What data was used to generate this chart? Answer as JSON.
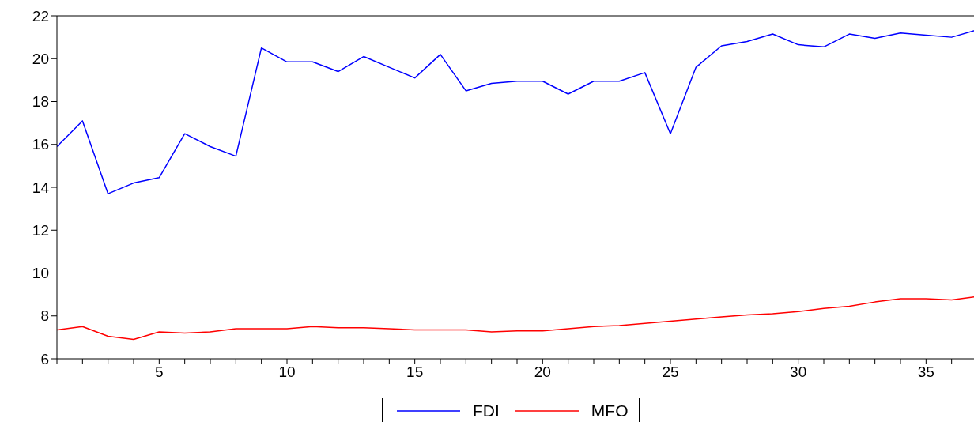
{
  "chart_data": {
    "type": "line",
    "x": [
      1,
      2,
      3,
      4,
      5,
      6,
      7,
      8,
      9,
      10,
      11,
      12,
      13,
      14,
      15,
      16,
      17,
      18,
      19,
      20,
      21,
      22,
      23,
      24,
      25,
      26,
      27,
      28,
      29,
      30,
      31,
      32,
      33,
      34,
      35,
      36,
      37
    ],
    "series": [
      {
        "name": "FDI",
        "color": "#0000ff",
        "values": [
          15.9,
          17.1,
          13.7,
          14.2,
          14.45,
          16.5,
          15.9,
          15.45,
          20.5,
          19.85,
          19.85,
          19.4,
          20.1,
          19.6,
          19.1,
          20.2,
          18.5,
          18.85,
          18.95,
          18.95,
          18.35,
          18.95,
          18.95,
          19.35,
          16.5,
          19.6,
          20.6,
          20.8,
          21.15,
          20.65,
          20.55,
          21.15,
          20.95,
          21.2,
          21.1,
          21.0,
          21.35
        ]
      },
      {
        "name": "MFO",
        "color": "#ff0000",
        "values": [
          7.35,
          7.5,
          7.05,
          6.9,
          7.25,
          7.2,
          7.25,
          7.4,
          7.4,
          7.4,
          7.5,
          7.45,
          7.45,
          7.4,
          7.35,
          7.35,
          7.35,
          7.25,
          7.3,
          7.3,
          7.4,
          7.5,
          7.55,
          7.65,
          7.75,
          7.85,
          7.95,
          8.05,
          8.1,
          8.2,
          8.35,
          8.45,
          8.65,
          8.8,
          8.8,
          8.75,
          8.9
        ]
      }
    ],
    "xlim": [
      1,
      37
    ],
    "xticks": [
      {
        "value": 1,
        "label": null
      },
      {
        "value": 2,
        "label": null
      },
      {
        "value": 3,
        "label": null
      },
      {
        "value": 4,
        "label": null
      },
      5,
      {
        "value": 6,
        "label": null
      },
      {
        "value": 7,
        "label": null
      },
      {
        "value": 8,
        "label": null
      },
      {
        "value": 9,
        "label": null
      },
      10,
      {
        "value": 11,
        "label": null
      },
      {
        "value": 12,
        "label": null
      },
      {
        "value": 13,
        "label": null
      },
      {
        "value": 14,
        "label": null
      },
      15,
      {
        "value": 16,
        "label": null
      },
      {
        "value": 17,
        "label": null
      },
      {
        "value": 18,
        "label": null
      },
      {
        "value": 19,
        "label": null
      },
      20,
      {
        "value": 21,
        "label": null
      },
      {
        "value": 22,
        "label": null
      },
      {
        "value": 23,
        "label": null
      },
      {
        "value": 24,
        "label": null
      },
      25,
      {
        "value": 26,
        "label": null
      },
      {
        "value": 27,
        "label": null
      },
      {
        "value": 28,
        "label": null
      },
      {
        "value": 29,
        "label": null
      },
      30,
      {
        "value": 31,
        "label": null
      },
      {
        "value": 32,
        "label": null
      },
      {
        "value": 33,
        "label": null
      },
      {
        "value": 34,
        "label": null
      },
      35,
      {
        "value": 36,
        "label": null
      },
      {
        "value": 37,
        "label": null
      }
    ],
    "ylim": [
      6,
      22
    ],
    "yticks": [
      6,
      8,
      10,
      12,
      14,
      16,
      18,
      20,
      22
    ],
    "grid": false,
    "legend": "bottom",
    "marker": "none",
    "line_style": "solid"
  }
}
